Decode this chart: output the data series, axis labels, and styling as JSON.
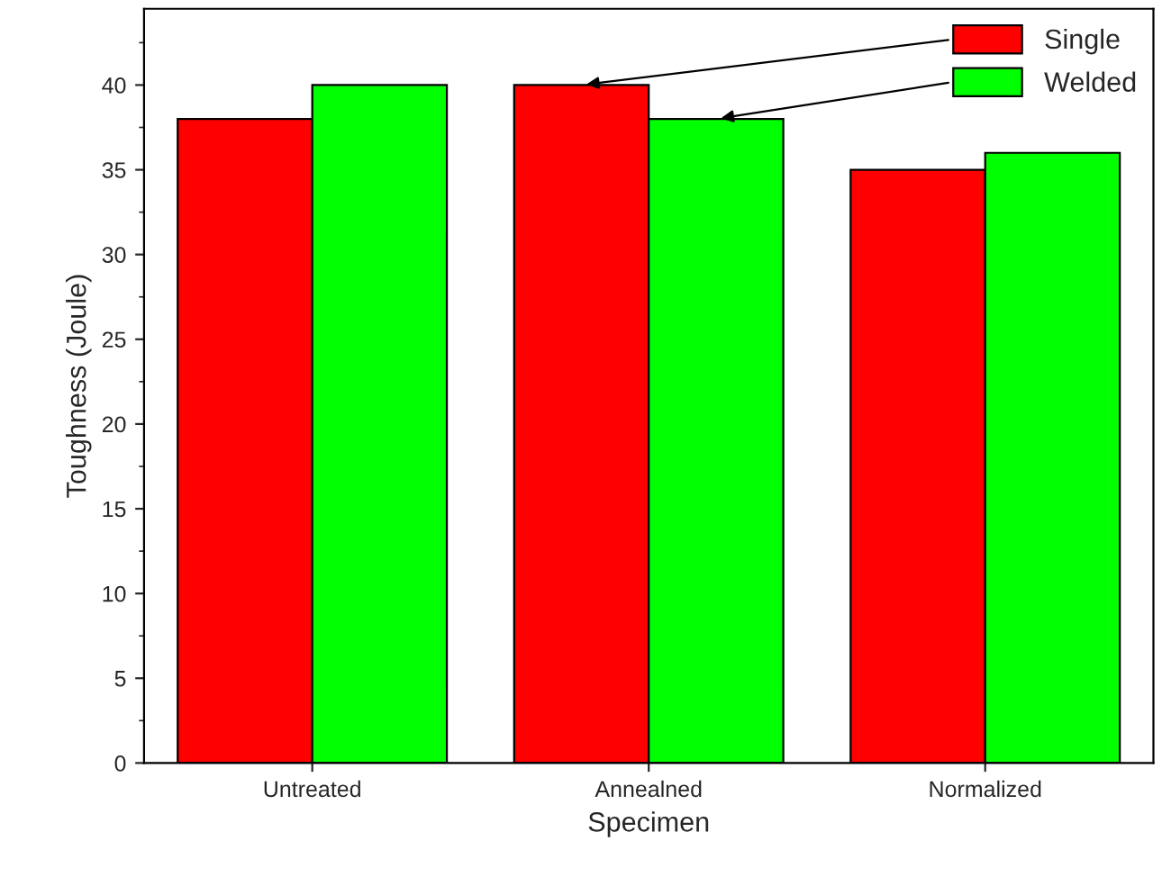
{
  "chart_data": {
    "type": "bar",
    "xlabel": "Specimen",
    "ylabel": "Toughness (Joule)",
    "categories": [
      "Untreated",
      "Annealned",
      "Normalized"
    ],
    "series": [
      {
        "name": "Single",
        "color": "#ff0000",
        "values": [
          38,
          40,
          35
        ]
      },
      {
        "name": "Welded",
        "color": "#00ff00",
        "values": [
          40,
          38,
          36
        ]
      }
    ],
    "ylim": [
      0,
      44.5
    ],
    "yticks": [
      0,
      5,
      10,
      15,
      20,
      25,
      30,
      35,
      40
    ],
    "grid": false,
    "legend": "top right"
  }
}
